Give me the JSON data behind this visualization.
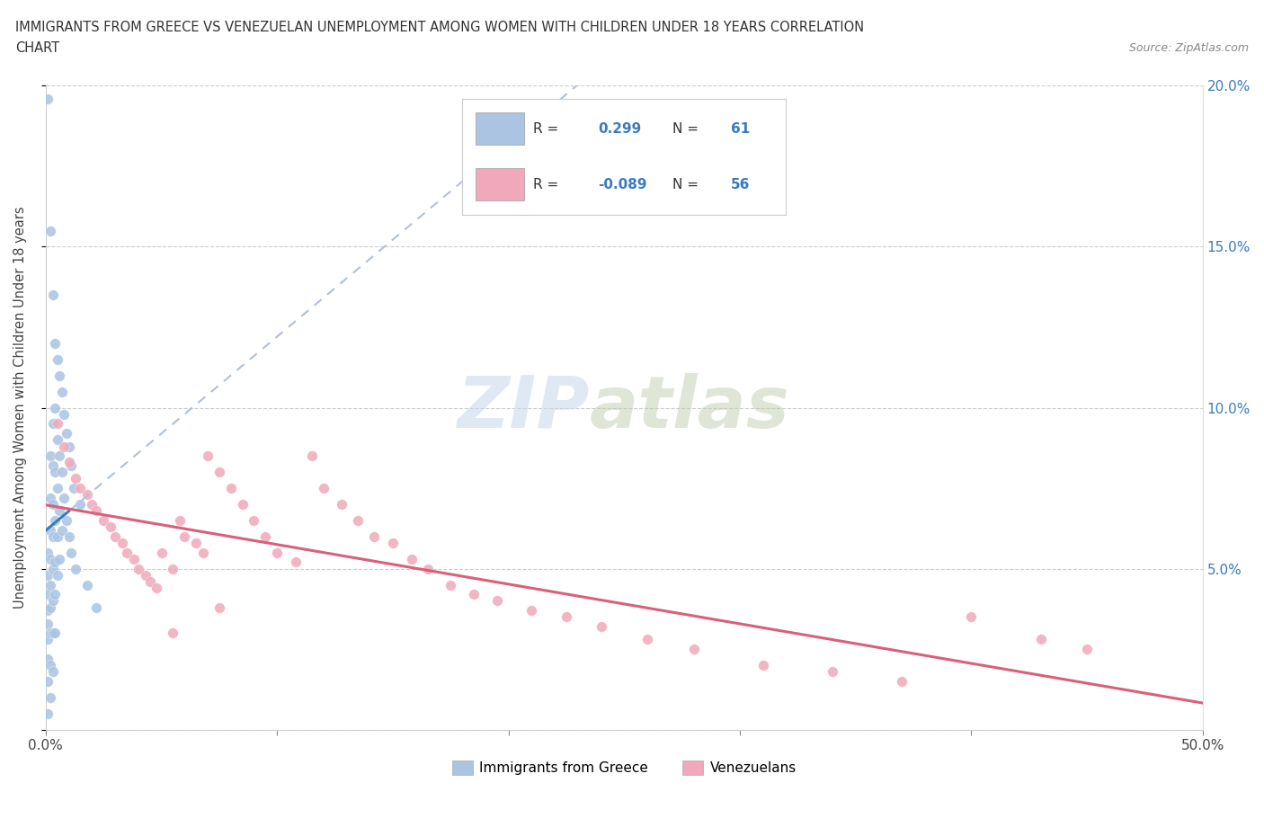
{
  "title_line1": "IMMIGRANTS FROM GREECE VS VENEZUELAN UNEMPLOYMENT AMONG WOMEN WITH CHILDREN UNDER 18 YEARS CORRELATION",
  "title_line2": "CHART",
  "source": "Source: ZipAtlas.com",
  "ylabel": "Unemployment Among Women with Children Under 18 years",
  "xlim": [
    0.0,
    0.5
  ],
  "ylim": [
    0.0,
    0.2
  ],
  "R_greece": 0.299,
  "N_greece": 61,
  "R_venezuela": -0.089,
  "N_venezuela": 56,
  "color_greece": "#aac4e2",
  "color_venezuela": "#f0a8ba",
  "trend_color_greece": "#3a7bbf",
  "trend_color_venezuela": "#d9607a",
  "trend_dash_color": "#b0c0d8",
  "background_color": "#ffffff",
  "watermark_zip": "ZIP",
  "watermark_atlas": "atlas",
  "greece_x": [
    0.001,
    0.001,
    0.001,
    0.001,
    0.001,
    0.001,
    0.001,
    0.001,
    0.001,
    0.001,
    0.002,
    0.002,
    0.002,
    0.002,
    0.002,
    0.002,
    0.002,
    0.002,
    0.002,
    0.002,
    0.003,
    0.003,
    0.003,
    0.003,
    0.003,
    0.003,
    0.003,
    0.003,
    0.003,
    0.004,
    0.004,
    0.004,
    0.004,
    0.004,
    0.004,
    0.004,
    0.005,
    0.005,
    0.005,
    0.005,
    0.005,
    0.006,
    0.006,
    0.006,
    0.006,
    0.007,
    0.007,
    0.007,
    0.008,
    0.008,
    0.009,
    0.009,
    0.01,
    0.01,
    0.011,
    0.011,
    0.012,
    0.013,
    0.015,
    0.018,
    0.022
  ],
  "greece_y": [
    0.196,
    0.055,
    0.048,
    0.042,
    0.037,
    0.033,
    0.028,
    0.022,
    0.015,
    0.005,
    0.155,
    0.085,
    0.072,
    0.062,
    0.053,
    0.045,
    0.038,
    0.03,
    0.02,
    0.01,
    0.135,
    0.095,
    0.082,
    0.07,
    0.06,
    0.05,
    0.04,
    0.03,
    0.018,
    0.12,
    0.1,
    0.08,
    0.065,
    0.052,
    0.042,
    0.03,
    0.115,
    0.09,
    0.075,
    0.06,
    0.048,
    0.11,
    0.085,
    0.068,
    0.053,
    0.105,
    0.08,
    0.062,
    0.098,
    0.072,
    0.092,
    0.065,
    0.088,
    0.06,
    0.082,
    0.055,
    0.075,
    0.05,
    0.07,
    0.045,
    0.038
  ],
  "venezuela_x": [
    0.005,
    0.008,
    0.01,
    0.013,
    0.015,
    0.018,
    0.02,
    0.022,
    0.025,
    0.028,
    0.03,
    0.033,
    0.035,
    0.038,
    0.04,
    0.043,
    0.045,
    0.048,
    0.05,
    0.055,
    0.058,
    0.06,
    0.065,
    0.068,
    0.07,
    0.075,
    0.08,
    0.085,
    0.09,
    0.095,
    0.1,
    0.108,
    0.115,
    0.12,
    0.128,
    0.135,
    0.142,
    0.15,
    0.158,
    0.165,
    0.175,
    0.185,
    0.195,
    0.21,
    0.225,
    0.24,
    0.26,
    0.28,
    0.31,
    0.34,
    0.37,
    0.4,
    0.43,
    0.45,
    0.055,
    0.075
  ],
  "venezuela_y": [
    0.095,
    0.088,
    0.083,
    0.078,
    0.075,
    0.073,
    0.07,
    0.068,
    0.065,
    0.063,
    0.06,
    0.058,
    0.055,
    0.053,
    0.05,
    0.048,
    0.046,
    0.044,
    0.055,
    0.05,
    0.065,
    0.06,
    0.058,
    0.055,
    0.085,
    0.08,
    0.075,
    0.07,
    0.065,
    0.06,
    0.055,
    0.052,
    0.085,
    0.075,
    0.07,
    0.065,
    0.06,
    0.058,
    0.053,
    0.05,
    0.045,
    0.042,
    0.04,
    0.037,
    0.035,
    0.032,
    0.028,
    0.025,
    0.02,
    0.018,
    0.015,
    0.035,
    0.028,
    0.025,
    0.03,
    0.038
  ]
}
